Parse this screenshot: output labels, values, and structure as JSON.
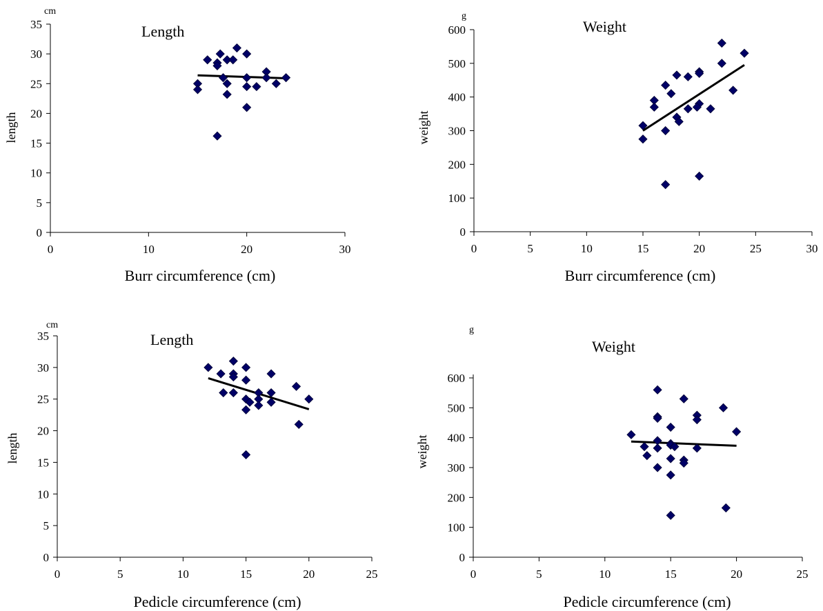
{
  "chart_data": [
    {
      "type": "scatter",
      "title": "Length",
      "xlabel": "Burr circumference (cm)",
      "ylabel": "length",
      "unit": "cm",
      "xlim": [
        0,
        30
      ],
      "ylim": [
        0,
        35
      ],
      "xticks": [
        0,
        10,
        20,
        30
      ],
      "yticks": [
        0,
        5,
        10,
        15,
        20,
        25,
        30,
        35
      ],
      "grid": false,
      "points": [
        [
          15,
          25
        ],
        [
          15,
          24
        ],
        [
          16,
          29
        ],
        [
          17,
          28.5
        ],
        [
          17,
          28
        ],
        [
          17.3,
          30
        ],
        [
          17.6,
          26
        ],
        [
          18,
          29
        ],
        [
          18,
          25
        ],
        [
          18,
          23.2
        ],
        [
          18.6,
          29
        ],
        [
          19,
          31
        ],
        [
          20,
          30
        ],
        [
          20,
          26
        ],
        [
          20,
          24.5
        ],
        [
          20,
          21
        ],
        [
          21,
          24.5
        ],
        [
          22,
          27
        ],
        [
          22,
          26
        ],
        [
          23,
          25
        ],
        [
          24,
          26
        ],
        [
          17,
          16.2
        ]
      ],
      "trend": {
        "x": [
          15,
          24
        ],
        "y": [
          26.4,
          25.9
        ]
      },
      "marker_color": "#000066"
    },
    {
      "type": "scatter",
      "title": "Weight",
      "xlabel": "Burr circumference (cm)",
      "ylabel": "weight",
      "unit": "g",
      "xlim": [
        0,
        30
      ],
      "ylim": [
        0,
        600
      ],
      "xticks": [
        0,
        5,
        10,
        15,
        20,
        25,
        30
      ],
      "yticks": [
        0,
        100,
        200,
        300,
        400,
        500,
        600
      ],
      "grid": false,
      "points": [
        [
          15,
          315
        ],
        [
          15,
          275
        ],
        [
          16,
          390
        ],
        [
          16,
          370
        ],
        [
          17,
          435
        ],
        [
          17,
          300
        ],
        [
          17,
          140
        ],
        [
          17.5,
          410
        ],
        [
          18,
          465
        ],
        [
          18,
          340
        ],
        [
          18.2,
          327
        ],
        [
          19,
          460
        ],
        [
          19,
          365
        ],
        [
          20,
          475
        ],
        [
          20,
          470
        ],
        [
          20,
          380
        ],
        [
          19.8,
          370
        ],
        [
          20,
          165
        ],
        [
          21,
          365
        ],
        [
          22,
          560
        ],
        [
          22,
          500
        ],
        [
          23,
          420
        ],
        [
          24,
          530
        ]
      ],
      "trend": {
        "x": [
          15,
          24
        ],
        "y": [
          300,
          495
        ]
      },
      "marker_color": "#000066"
    },
    {
      "type": "scatter",
      "title": "Length",
      "xlabel": "Pedicle circumference (cm)",
      "ylabel": "length",
      "unit": "cm",
      "xlim": [
        0,
        25
      ],
      "ylim": [
        0,
        35
      ],
      "xticks": [
        0,
        5,
        10,
        15,
        20,
        25
      ],
      "yticks": [
        0,
        5,
        10,
        15,
        20,
        25,
        30,
        35
      ],
      "grid": false,
      "points": [
        [
          12,
          30
        ],
        [
          13,
          29
        ],
        [
          13.2,
          26
        ],
        [
          14,
          31
        ],
        [
          14,
          29
        ],
        [
          14,
          28.5
        ],
        [
          14,
          26
        ],
        [
          15,
          30
        ],
        [
          15,
          28
        ],
        [
          15,
          25
        ],
        [
          15,
          23.3
        ],
        [
          15.3,
          24.5
        ],
        [
          16,
          26
        ],
        [
          16,
          25
        ],
        [
          16,
          24
        ],
        [
          17,
          29
        ],
        [
          17,
          26
        ],
        [
          17,
          24.5
        ],
        [
          19,
          27
        ],
        [
          19.2,
          21
        ],
        [
          20,
          25
        ],
        [
          15,
          16.2
        ]
      ],
      "trend": {
        "x": [
          12,
          20
        ],
        "y": [
          28.3,
          23.4
        ]
      },
      "marker_color": "#000066"
    },
    {
      "type": "scatter",
      "title": "Weight",
      "xlabel": "Pedicle circumference (cm)",
      "ylabel": "weight",
      "unit": "g",
      "xlim": [
        0,
        25
      ],
      "ylim": [
        0,
        600
      ],
      "xticks": [
        0,
        5,
        10,
        15,
        20,
        25
      ],
      "yticks": [
        0,
        100,
        200,
        300,
        400,
        500,
        600
      ],
      "grid": false,
      "points": [
        [
          12,
          410
        ],
        [
          13,
          370
        ],
        [
          13.2,
          340
        ],
        [
          14,
          560
        ],
        [
          14,
          470
        ],
        [
          14,
          465
        ],
        [
          14,
          390
        ],
        [
          14,
          365
        ],
        [
          14,
          300
        ],
        [
          15,
          435
        ],
        [
          15,
          380
        ],
        [
          15,
          375
        ],
        [
          15,
          330
        ],
        [
          15,
          275
        ],
        [
          15,
          140
        ],
        [
          15.3,
          370
        ],
        [
          16,
          530
        ],
        [
          16,
          325
        ],
        [
          16,
          315
        ],
        [
          17,
          475
        ],
        [
          17,
          460
        ],
        [
          17,
          365
        ],
        [
          19,
          500
        ],
        [
          19.2,
          165
        ],
        [
          20,
          420
        ]
      ],
      "trend": {
        "x": [
          12,
          20
        ],
        "y": [
          387,
          373
        ]
      },
      "marker_color": "#000066"
    }
  ]
}
